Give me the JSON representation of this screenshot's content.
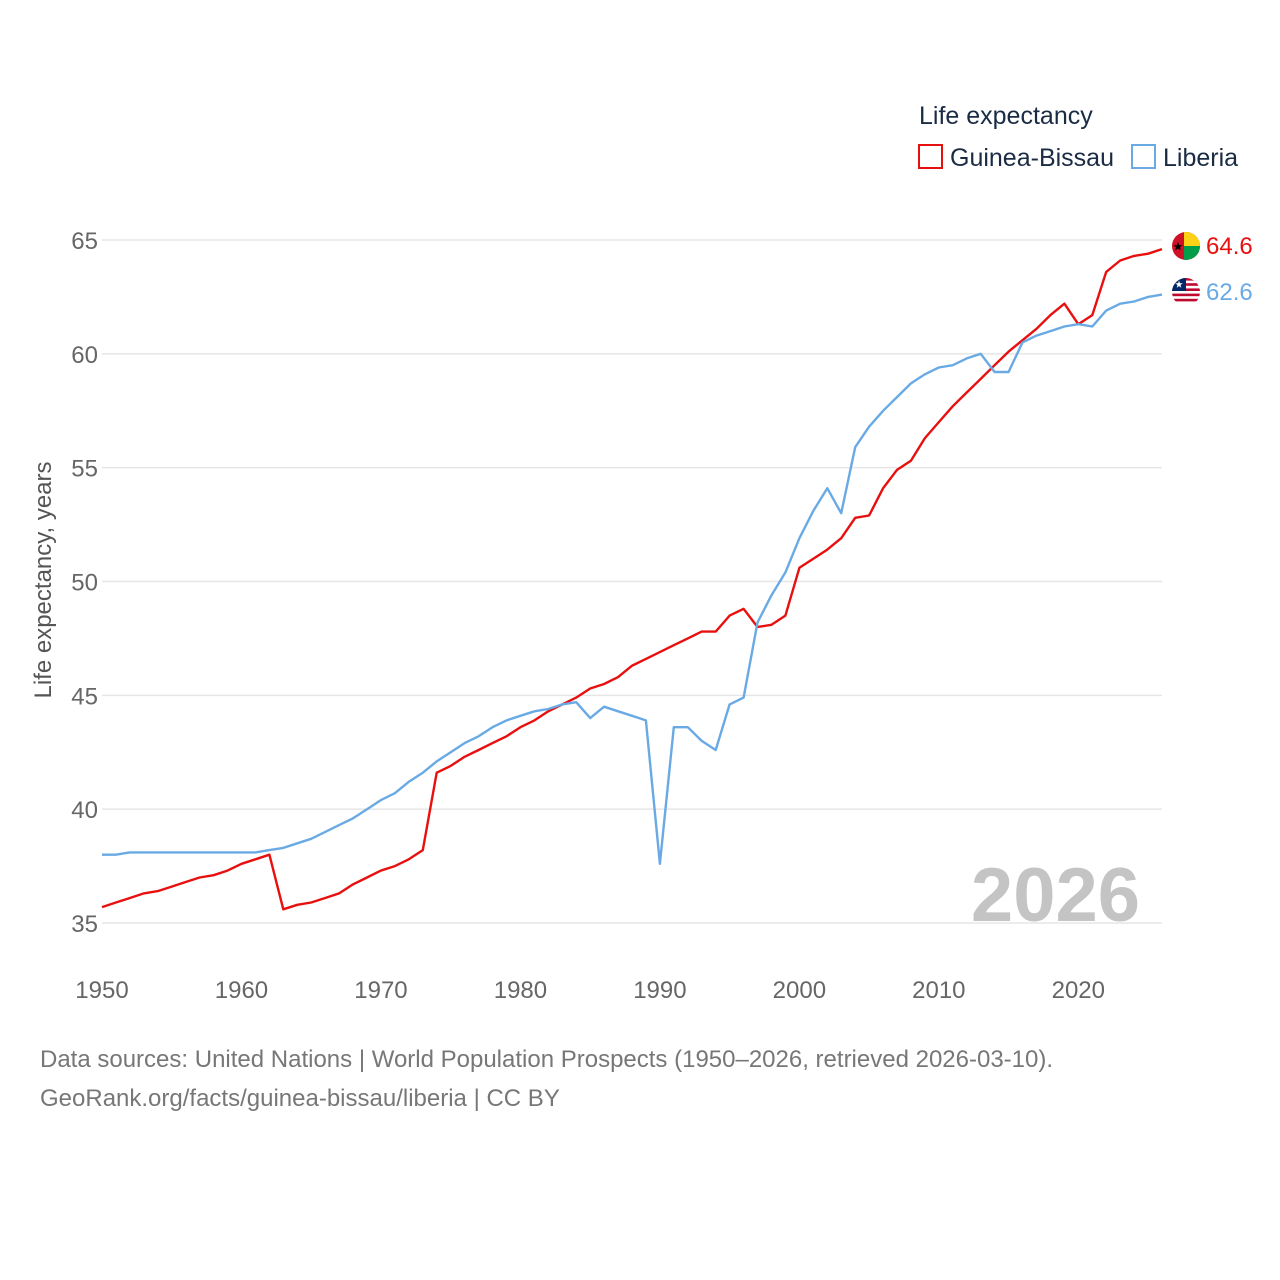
{
  "chart_data": {
    "type": "line",
    "legend_title": "Life expectancy",
    "ylabel": "Life expectancy, years",
    "xlabel": "",
    "xlim": [
      1950,
      2026
    ],
    "ylim": [
      33.5,
      66.3
    ],
    "x_ticks": [
      1950,
      1960,
      1970,
      1980,
      1990,
      2000,
      2010,
      2020
    ],
    "y_ticks": [
      35,
      40,
      45,
      50,
      55,
      60,
      65
    ],
    "grid": true,
    "legend_position": "top-right",
    "current_year": "2026",
    "x": [
      1950,
      1951,
      1952,
      1953,
      1954,
      1955,
      1956,
      1957,
      1958,
      1959,
      1960,
      1961,
      1962,
      1963,
      1964,
      1965,
      1966,
      1967,
      1968,
      1969,
      1970,
      1971,
      1972,
      1973,
      1974,
      1975,
      1976,
      1977,
      1978,
      1979,
      1980,
      1981,
      1982,
      1983,
      1984,
      1985,
      1986,
      1987,
      1988,
      1989,
      1990,
      1991,
      1992,
      1993,
      1994,
      1995,
      1996,
      1997,
      1998,
      1999,
      2000,
      2001,
      2002,
      2003,
      2004,
      2005,
      2006,
      2007,
      2008,
      2009,
      2010,
      2011,
      2012,
      2013,
      2014,
      2015,
      2016,
      2017,
      2018,
      2019,
      2020,
      2021,
      2022,
      2023,
      2024,
      2025,
      2026
    ],
    "series": [
      {
        "name": "Guinea-Bissau",
        "color": "#e8100f",
        "end_label": "64.6",
        "flag": "guinea-bissau-flag",
        "values": [
          35.7,
          35.9,
          36.1,
          36.3,
          36.4,
          36.6,
          36.8,
          37.0,
          37.1,
          37.3,
          37.6,
          37.8,
          38.0,
          35.6,
          35.8,
          35.9,
          36.1,
          36.3,
          36.7,
          37.0,
          37.3,
          37.5,
          37.8,
          38.2,
          41.6,
          41.9,
          42.3,
          42.6,
          42.9,
          43.2,
          43.6,
          43.9,
          44.3,
          44.6,
          44.9,
          45.3,
          45.5,
          45.8,
          46.3,
          46.6,
          46.9,
          47.2,
          47.5,
          47.8,
          47.8,
          48.5,
          48.8,
          48.0,
          48.1,
          48.5,
          50.6,
          51.0,
          51.4,
          51.9,
          52.8,
          52.9,
          54.1,
          54.9,
          55.3,
          56.3,
          57.0,
          57.7,
          58.3,
          58.9,
          59.5,
          60.1,
          60.6,
          61.1,
          61.7,
          62.2,
          61.3,
          61.7,
          63.6,
          64.1,
          64.3,
          64.4,
          64.6
        ]
      },
      {
        "name": "Liberia",
        "color": "#6aaae4",
        "end_label": "62.6",
        "flag": "liberia-flag",
        "values": [
          38.0,
          38.0,
          38.1,
          38.1,
          38.1,
          38.1,
          38.1,
          38.1,
          38.1,
          38.1,
          38.1,
          38.1,
          38.2,
          38.3,
          38.5,
          38.7,
          39.0,
          39.3,
          39.6,
          40.0,
          40.4,
          40.7,
          41.2,
          41.6,
          42.1,
          42.5,
          42.9,
          43.2,
          43.6,
          43.9,
          44.1,
          44.3,
          44.4,
          44.6,
          44.7,
          44.0,
          44.5,
          44.3,
          44.1,
          43.9,
          37.6,
          43.6,
          43.6,
          43.0,
          42.6,
          44.6,
          44.9,
          48.2,
          49.4,
          50.4,
          51.9,
          53.1,
          54.1,
          53.0,
          55.9,
          56.8,
          57.5,
          58.1,
          58.7,
          59.1,
          59.4,
          59.5,
          59.8,
          60.0,
          59.2,
          59.2,
          60.5,
          60.8,
          61.0,
          61.2,
          61.3,
          61.2,
          61.9,
          62.2,
          62.3,
          62.5,
          62.6
        ]
      }
    ]
  },
  "footer": {
    "line1": "Data sources: United Nations | World Population Prospects (1950–2026, retrieved 2026-03-10).",
    "line2": "GeoRank.org/facts/guinea-bissau/liberia | CC BY"
  }
}
